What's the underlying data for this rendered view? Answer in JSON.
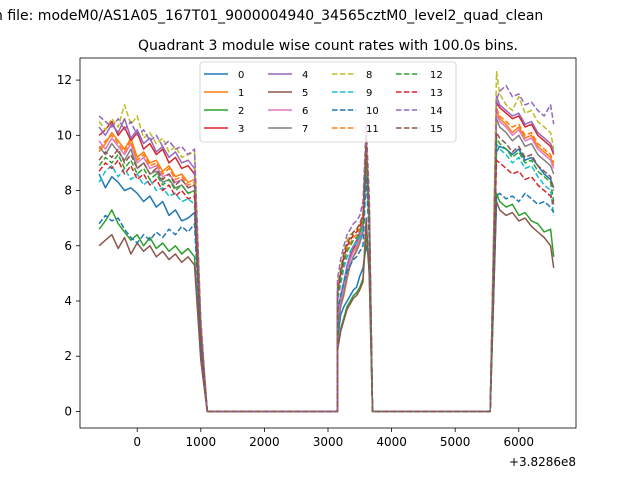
{
  "figure": {
    "suptitle": "n file: modeM0/AS1A05_167T01_9000004940_34565cztM0_level2_quad_clean",
    "title": "Quadrant 3 module wise count rates with 100.0s bins.",
    "x_offset_label": "+3.8286e8"
  },
  "chart_data": {
    "type": "line",
    "title": "Quadrant 3 module wise count rates with 100.0s bins.",
    "xlabel": "",
    "ylabel": "",
    "xlim": [
      -900,
      6900
    ],
    "ylim": [
      -0.6,
      12.8
    ],
    "x_offset": "+3.8286e8",
    "xticks": [
      0,
      1000,
      2000,
      3000,
      4000,
      5000,
      6000
    ],
    "yticks": [
      0,
      2,
      4,
      6,
      8,
      10,
      12
    ],
    "grid": false,
    "legend_position": "top-center",
    "legend_columns": 4,
    "segments": {
      "seg1_x": [
        -600,
        -500,
        -400,
        -300,
        -200,
        -100,
        0,
        100,
        200,
        300,
        400,
        500,
        600,
        700,
        800,
        900
      ],
      "seg2_x": [
        3150,
        3200,
        3250,
        3300,
        3350,
        3400,
        3450,
        3500,
        3550,
        3600,
        3650,
        3700
      ],
      "seg3_x": [
        5650,
        5700,
        5800,
        5900,
        6000,
        6100,
        6200,
        6300,
        6400,
        6500,
        6550
      ],
      "drop_x": [
        1000,
        1100
      ],
      "zero_x": [
        1100,
        3150,
        3700,
        3800,
        5550,
        5650
      ]
    },
    "series": [
      {
        "name": "0",
        "color": "#1f77b4",
        "dash": "solid",
        "seg1": [
          8.6,
          8.1,
          8.5,
          8.3,
          8.0,
          8.1,
          7.9,
          7.6,
          7.8,
          7.4,
          7.6,
          7.1,
          7.3,
          6.9,
          7.0,
          7.2
        ],
        "seg2": [
          2.6,
          3.5,
          3.8,
          4.0,
          4.2,
          4.4,
          4.5,
          4.9,
          5.2,
          6.0,
          5.5,
          0.0
        ],
        "seg3": [
          9.4,
          9.6,
          9.5,
          9.3,
          9.5,
          9.1,
          9.2,
          8.9,
          8.6,
          8.4,
          8.1
        ]
      },
      {
        "name": "1",
        "color": "#ff7f0e",
        "dash": "solid",
        "seg1": [
          9.4,
          9.7,
          10.1,
          9.8,
          9.5,
          9.9,
          9.2,
          9.4,
          9.0,
          9.1,
          8.7,
          8.9,
          8.5,
          8.6,
          8.3,
          8.4
        ],
        "seg2": [
          3.1,
          3.8,
          4.2,
          4.8,
          5.3,
          5.6,
          5.9,
          6.2,
          6.6,
          9.0,
          6.8,
          0.0
        ],
        "seg3": [
          10.9,
          10.6,
          10.4,
          10.1,
          10.3,
          9.9,
          10.0,
          9.6,
          9.4,
          9.2,
          8.9
        ]
      },
      {
        "name": "2",
        "color": "#2ca02c",
        "dash": "solid",
        "seg1": [
          6.6,
          6.9,
          7.3,
          6.8,
          6.5,
          6.2,
          6.4,
          6.0,
          6.3,
          5.9,
          6.1,
          5.8,
          6.0,
          5.7,
          5.9,
          5.6
        ],
        "seg2": [
          2.3,
          3.0,
          3.4,
          3.8,
          4.0,
          4.2,
          4.3,
          4.5,
          4.8,
          6.5,
          5.0,
          0.0
        ],
        "seg3": [
          7.9,
          7.6,
          7.4,
          7.5,
          7.1,
          7.2,
          6.9,
          6.8,
          6.5,
          6.6,
          5.6
        ]
      },
      {
        "name": "3",
        "color": "#d62728",
        "dash": "solid",
        "seg1": [
          10.0,
          10.2,
          10.5,
          10.0,
          10.3,
          9.8,
          10.1,
          9.5,
          9.7,
          9.3,
          9.5,
          9.0,
          9.2,
          8.8,
          8.9,
          8.6
        ],
        "seg2": [
          3.3,
          4.1,
          4.6,
          5.2,
          5.6,
          5.9,
          6.1,
          6.4,
          6.8,
          9.2,
          7.0,
          0.0
        ],
        "seg3": [
          11.2,
          11.0,
          10.8,
          10.6,
          10.7,
          10.3,
          10.4,
          10.0,
          9.8,
          9.6,
          9.3
        ]
      },
      {
        "name": "4",
        "color": "#9467bd",
        "dash": "solid",
        "seg1": [
          10.3,
          10.0,
          10.4,
          10.1,
          10.6,
          9.9,
          10.2,
          9.7,
          9.9,
          9.4,
          9.6,
          9.2,
          9.4,
          9.0,
          9.1,
          8.8
        ],
        "seg2": [
          3.4,
          4.2,
          4.7,
          5.3,
          5.7,
          6.0,
          6.2,
          6.5,
          6.9,
          9.4,
          7.1,
          0.0
        ],
        "seg3": [
          11.4,
          11.1,
          10.9,
          10.7,
          10.8,
          10.4,
          10.5,
          10.1,
          9.9,
          9.7,
          9.4
        ]
      },
      {
        "name": "5",
        "color": "#8c564b",
        "dash": "solid",
        "seg1": [
          6.0,
          6.2,
          6.4,
          5.9,
          6.3,
          5.7,
          6.1,
          5.8,
          6.0,
          5.6,
          5.8,
          5.5,
          5.7,
          5.4,
          5.6,
          5.3
        ],
        "seg2": [
          2.2,
          2.9,
          3.3,
          3.7,
          3.9,
          4.1,
          4.2,
          4.4,
          4.7,
          7.0,
          4.9,
          0.0
        ],
        "seg3": [
          7.6,
          7.3,
          7.1,
          7.2,
          6.9,
          7.0,
          6.7,
          6.5,
          6.3,
          6.0,
          5.2
        ]
      },
      {
        "name": "6",
        "color": "#e377c2",
        "dash": "solid",
        "seg1": [
          9.8,
          9.5,
          9.9,
          9.6,
          9.3,
          9.7,
          9.0,
          9.2,
          8.8,
          8.9,
          8.5,
          8.6,
          8.3,
          8.4,
          8.1,
          8.2
        ],
        "seg2": [
          3.2,
          4.0,
          4.5,
          5.1,
          5.5,
          5.8,
          6.0,
          6.3,
          6.7,
          9.1,
          6.9,
          0.0
        ],
        "seg3": [
          10.8,
          10.5,
          10.3,
          10.0,
          10.2,
          9.8,
          9.9,
          9.5,
          9.3,
          9.1,
          8.8
        ]
      },
      {
        "name": "7",
        "color": "#7f7f7f",
        "dash": "solid",
        "seg1": [
          9.6,
          9.3,
          9.7,
          9.4,
          9.1,
          9.5,
          8.8,
          9.0,
          8.6,
          8.7,
          8.3,
          8.4,
          8.1,
          8.2,
          7.9,
          8.0
        ],
        "seg2": [
          3.0,
          3.8,
          4.3,
          4.9,
          5.3,
          5.6,
          5.8,
          6.1,
          6.5,
          8.9,
          6.7,
          0.0
        ],
        "seg3": [
          10.6,
          10.3,
          10.1,
          9.8,
          10.0,
          9.6,
          9.7,
          9.3,
          9.1,
          8.9,
          8.6
        ]
      },
      {
        "name": "8",
        "color": "#bcbd22",
        "dash": "dashed",
        "seg1": [
          10.5,
          10.2,
          10.6,
          10.3,
          11.1,
          10.4,
          10.7,
          9.9,
          10.1,
          9.7,
          9.9,
          9.4,
          9.6,
          9.2,
          9.3,
          9.4
        ],
        "seg2": [
          4.6,
          5.2,
          5.8,
          6.2,
          6.4,
          6.5,
          6.6,
          6.8,
          7.2,
          10.0,
          7.4,
          0.0
        ],
        "seg3": [
          12.3,
          11.5,
          11.1,
          10.9,
          11.4,
          10.8,
          10.9,
          10.5,
          10.3,
          10.1,
          9.5
        ]
      },
      {
        "name": "9",
        "color": "#17becf",
        "dash": "dashed",
        "seg1": [
          8.3,
          8.7,
          8.9,
          8.5,
          8.8,
          8.4,
          8.6,
          8.2,
          8.4,
          8.0,
          8.1,
          7.8,
          7.9,
          7.6,
          7.7,
          7.5
        ],
        "seg2": [
          4.0,
          4.6,
          5.2,
          5.6,
          5.8,
          6.0,
          6.1,
          6.3,
          6.6,
          9.0,
          6.9,
          0.0
        ],
        "seg3": [
          9.7,
          9.5,
          9.3,
          9.0,
          9.2,
          8.8,
          8.9,
          8.5,
          8.2,
          8.0,
          7.1
        ]
      },
      {
        "name": "10",
        "color": "#1f77b4",
        "dash": "dashed",
        "seg1": [
          6.8,
          7.1,
          6.9,
          7.0,
          6.6,
          6.3,
          6.1,
          6.4,
          6.2,
          6.5,
          6.3,
          6.6,
          6.4,
          6.7,
          6.5,
          6.8
        ],
        "seg2": [
          3.6,
          4.2,
          4.7,
          5.1,
          5.3,
          5.5,
          5.6,
          5.8,
          6.0,
          8.5,
          6.2,
          0.0
        ],
        "seg3": [
          7.8,
          7.9,
          7.7,
          7.8,
          7.6,
          7.9,
          7.7,
          7.5,
          7.6,
          7.4,
          7.2
        ]
      },
      {
        "name": "11",
        "color": "#ff7f0e",
        "dash": "dashed",
        "seg1": [
          9.5,
          9.8,
          10.0,
          9.7,
          9.4,
          9.8,
          9.1,
          9.3,
          8.9,
          9.0,
          8.6,
          8.8,
          8.4,
          8.5,
          8.2,
          8.3
        ],
        "seg2": [
          4.2,
          4.9,
          5.5,
          5.9,
          6.1,
          6.3,
          6.4,
          6.6,
          6.9,
          9.6,
          7.1,
          0.0
        ],
        "seg3": [
          11.0,
          10.7,
          10.5,
          10.3,
          10.4,
          10.0,
          10.1,
          9.7,
          9.5,
          9.3,
          9.0
        ]
      },
      {
        "name": "12",
        "color": "#2ca02c",
        "dash": "dashed",
        "seg1": [
          8.9,
          9.2,
          9.0,
          9.3,
          8.8,
          9.1,
          8.6,
          8.8,
          8.4,
          8.6,
          8.2,
          8.4,
          8.0,
          8.2,
          7.9,
          8.0
        ],
        "seg2": [
          4.1,
          4.8,
          5.4,
          5.8,
          6.0,
          6.2,
          6.3,
          6.5,
          6.8,
          9.4,
          7.0,
          0.0
        ],
        "seg3": [
          9.9,
          9.7,
          9.5,
          9.2,
          9.4,
          9.0,
          9.1,
          8.7,
          8.5,
          8.3,
          7.6
        ]
      },
      {
        "name": "13",
        "color": "#d62728",
        "dash": "dashed",
        "seg1": [
          8.7,
          9.0,
          8.8,
          9.1,
          8.6,
          8.9,
          8.4,
          8.6,
          8.2,
          8.4,
          8.0,
          8.2,
          7.8,
          8.0,
          7.7,
          7.8
        ],
        "seg2": [
          4.3,
          5.0,
          5.6,
          6.0,
          6.2,
          6.4,
          6.5,
          6.7,
          7.0,
          9.7,
          7.2,
          0.0
        ],
        "seg3": [
          9.1,
          9.0,
          8.8,
          8.6,
          8.7,
          8.4,
          8.5,
          8.2,
          8.0,
          7.8,
          7.5
        ]
      },
      {
        "name": "14",
        "color": "#9467bd",
        "dash": "dashed",
        "seg1": [
          10.7,
          10.5,
          10.3,
          10.6,
          10.2,
          10.5,
          10.0,
          10.2,
          9.8,
          10.0,
          9.6,
          9.8,
          9.5,
          9.6,
          9.3,
          9.5
        ],
        "seg2": [
          4.8,
          5.5,
          6.0,
          6.4,
          6.6,
          6.8,
          6.9,
          7.1,
          7.6,
          10.4,
          7.8,
          0.0
        ],
        "seg3": [
          11.3,
          11.6,
          11.8,
          11.4,
          11.5,
          11.1,
          11.2,
          10.9,
          10.7,
          11.1,
          10.4
        ]
      },
      {
        "name": "15",
        "color": "#8c564b",
        "dash": "dashed",
        "seg1": [
          9.1,
          9.4,
          9.2,
          9.5,
          9.0,
          9.3,
          8.8,
          9.0,
          8.6,
          8.8,
          8.4,
          8.6,
          8.2,
          8.4,
          8.1,
          8.2
        ],
        "seg2": [
          4.4,
          5.1,
          5.7,
          6.1,
          6.3,
          6.5,
          6.6,
          6.8,
          7.1,
          9.8,
          7.3,
          0.0
        ],
        "seg3": [
          10.1,
          9.9,
          9.7,
          9.4,
          9.6,
          9.2,
          9.3,
          8.9,
          8.7,
          8.5,
          8.0
        ]
      }
    ]
  }
}
